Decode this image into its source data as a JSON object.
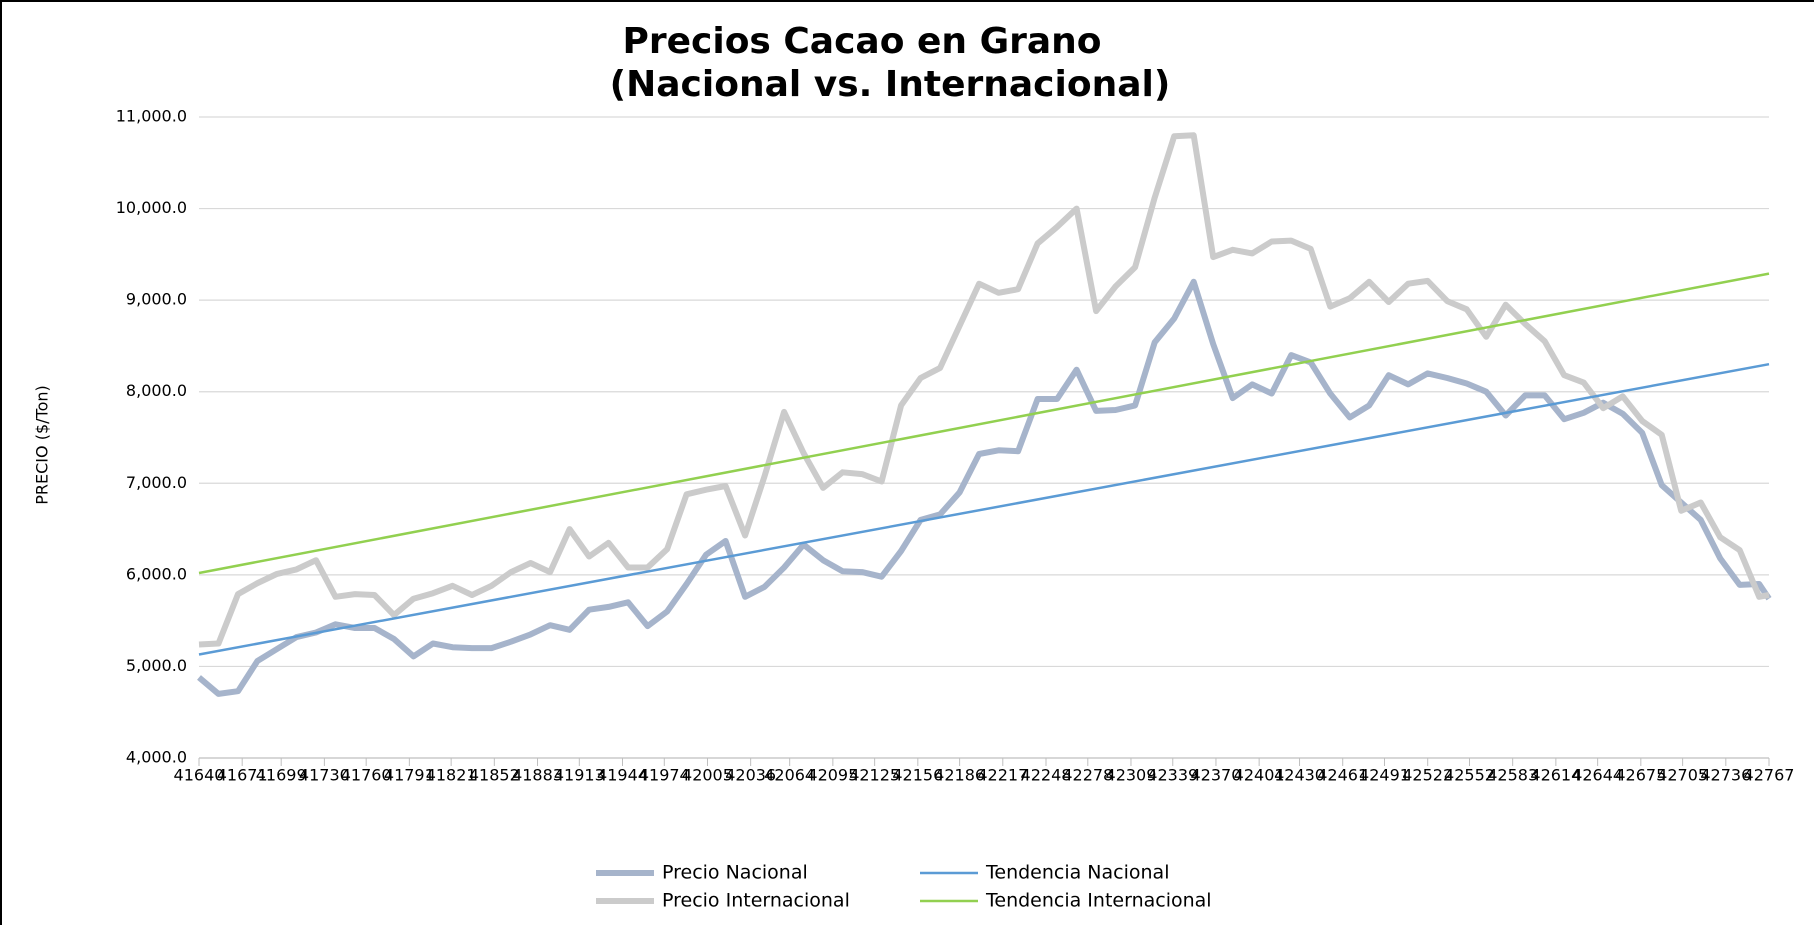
{
  "chart_data": {
    "type": "line",
    "title": [
      "Precios  Cacao en Grano",
      "(Nacional vs. Internacional)"
    ],
    "y_label": "PRECIO   ($/Ton)",
    "x": [
      41640,
      41654,
      41668,
      41682,
      41696,
      41710,
      41724,
      41738,
      41752,
      41766,
      41780,
      41794,
      41808,
      41822,
      41836,
      41850,
      41864,
      41878,
      41892,
      41906,
      41920,
      41934,
      41948,
      41962,
      41976,
      41990,
      42004,
      42018,
      42032,
      42046,
      42060,
      42074,
      42088,
      42102,
      42116,
      42130,
      42144,
      42158,
      42172,
      42186,
      42200,
      42214,
      42228,
      42242,
      42256,
      42270,
      42284,
      42298,
      42312,
      42326,
      42340,
      42354,
      42368,
      42382,
      42396,
      42410,
      42424,
      42438,
      42452,
      42466,
      42480,
      42494,
      42508,
      42522,
      42536,
      42550,
      42564,
      42578,
      42592,
      42606,
      42620,
      42634,
      42648,
      42662,
      42676,
      42690,
      42704,
      42718,
      42732,
      42746,
      42760,
      42767
    ],
    "series": [
      {
        "name": "Precio Nacional",
        "color": "#a6b4cb",
        "width": 6,
        "values": [
          4880,
          4700,
          4730,
          5060,
          5190,
          5320,
          5370,
          5460,
          5420,
          5420,
          5300,
          5110,
          5250,
          5210,
          5200,
          5200,
          5270,
          5350,
          5450,
          5400,
          5620,
          5650,
          5700,
          5440,
          5600,
          5900,
          6220,
          6370,
          5760,
          5870,
          6080,
          6330,
          6160,
          6040,
          6030,
          5980,
          6260,
          6600,
          6660,
          6900,
          7320,
          7360,
          7350,
          7920,
          7920,
          8240,
          7790,
          7800,
          7850,
          8540,
          8800,
          9200,
          8520,
          7930,
          8080,
          7980,
          8400,
          8320,
          7980,
          7720,
          7850,
          8180,
          8080,
          8200,
          8150,
          8090,
          8000,
          7740,
          7960,
          7960,
          7700,
          7770,
          7880,
          7760,
          7550,
          6980,
          6790,
          6600,
          6180,
          5890,
          5900,
          5740
        ]
      },
      {
        "name": "Tendencia Nacional",
        "color": "#5b9bd5",
        "width": 2.5,
        "x": [
          41640,
          42767
        ],
        "values": [
          5130,
          8300
        ]
      },
      {
        "name": "Precio Internacional",
        "color": "#cbcbcb",
        "width": 6,
        "values": [
          5240,
          5250,
          5790,
          5910,
          6010,
          6060,
          6160,
          5760,
          5790,
          5780,
          5560,
          5740,
          5800,
          5880,
          5780,
          5880,
          6030,
          6130,
          6030,
          6500,
          6200,
          6350,
          6080,
          6080,
          6280,
          6880,
          6930,
          6970,
          6430,
          7080,
          7780,
          7330,
          6950,
          7120,
          7100,
          7020,
          7850,
          8150,
          8260,
          8720,
          9180,
          9080,
          9120,
          9620,
          9800,
          10000,
          8880,
          9150,
          9360,
          10120,
          10790,
          10800,
          9470,
          9550,
          9510,
          9640,
          9650,
          9560,
          8930,
          9020,
          9200,
          8980,
          9180,
          9210,
          8990,
          8900,
          8600,
          8950,
          8740,
          8550,
          8180,
          8100,
          7820,
          7950,
          7680,
          7530,
          6700,
          6790,
          6410,
          6270,
          5760,
          5780
        ]
      },
      {
        "name": "Tendencia Internacional",
        "color": "#92d050",
        "width": 2.5,
        "x": [
          41640,
          42767
        ],
        "values": [
          6020,
          9290
        ]
      }
    ],
    "xlim": [
      41640,
      42767
    ],
    "xticks": [
      41640,
      41671,
      41699,
      41730,
      41760,
      41791,
      41821,
      41852,
      41883,
      41913,
      41944,
      41974,
      42005,
      42036,
      42064,
      42095,
      42125,
      42156,
      42186,
      42217,
      42248,
      42278,
      42309,
      42339,
      42370,
      42401,
      42430,
      42461,
      42491,
      42522,
      42552,
      42583,
      42614,
      42644,
      42675,
      42705,
      42736,
      42767
    ],
    "ylim": [
      4000,
      11000
    ],
    "yticks": [
      {
        "value": 4000,
        "label": "4,000.0"
      },
      {
        "value": 5000,
        "label": "5,000.0"
      },
      {
        "value": 6000,
        "label": "6,000.0"
      },
      {
        "value": 7000,
        "label": "7,000.0"
      },
      {
        "value": 8000,
        "label": "8,000.0"
      },
      {
        "value": 9000,
        "label": "9,000.0"
      },
      {
        "value": 10000,
        "label": "10,000.0"
      },
      {
        "value": 11000,
        "label": "11,000.0"
      }
    ],
    "grid": true,
    "legend": "bottom"
  }
}
